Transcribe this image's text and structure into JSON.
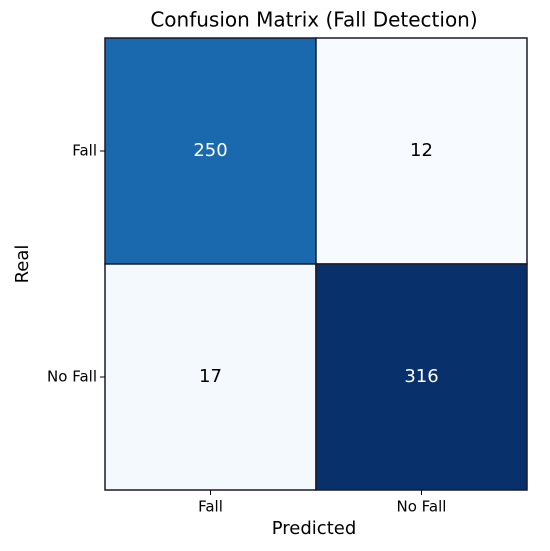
{
  "chart_data": {
    "type": "heatmap",
    "title": "Confusion Matrix (Fall Detection)",
    "x_label": "Predicted",
    "y_label": "Real",
    "x_categories": [
      "Fall",
      "No Fall"
    ],
    "y_categories": [
      "Fall",
      "No Fall"
    ],
    "values": [
      [
        250,
        12
      ],
      [
        17,
        316
      ]
    ],
    "colormap": "Blues"
  }
}
